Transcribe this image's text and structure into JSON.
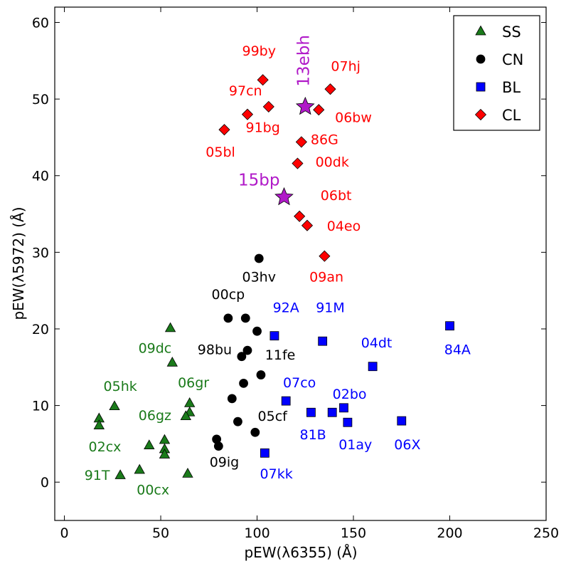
{
  "chart_data": {
    "type": "scatter",
    "title": "",
    "xlabel": "pEW(λ6355) (Å)",
    "ylabel": "pEW(λ5972) (Å)",
    "xlim": [
      -5,
      250
    ],
    "ylim": [
      -5,
      62
    ],
    "xticks": [
      0,
      50,
      100,
      150,
      200,
      250
    ],
    "yticks": [
      0,
      10,
      20,
      30,
      40,
      50,
      60
    ],
    "grid": false,
    "legend_position": "top-right",
    "series": [
      {
        "name": "SS",
        "marker": "triangle",
        "color": "#1a7a1a",
        "points": [
          [
            55,
            20.1
          ],
          [
            56,
            15.6
          ],
          [
            65,
            10.3
          ],
          [
            65,
            9.1
          ],
          [
            63,
            8.6
          ],
          [
            26,
            9.9
          ],
          [
            18,
            8.3
          ],
          [
            18,
            7.4
          ],
          [
            52,
            5.5
          ],
          [
            44,
            4.8
          ],
          [
            52,
            4.3
          ],
          [
            52,
            3.6
          ],
          [
            39,
            1.6
          ],
          [
            29,
            0.9
          ],
          [
            64,
            1.1
          ]
        ]
      },
      {
        "name": "CN",
        "marker": "circle",
        "color": "#000000",
        "points": [
          [
            101,
            29.2
          ],
          [
            85,
            21.4
          ],
          [
            94,
            21.4
          ],
          [
            100,
            19.7
          ],
          [
            95,
            17.2
          ],
          [
            92,
            16.4
          ],
          [
            102,
            14.0
          ],
          [
            93,
            12.9
          ],
          [
            87,
            10.9
          ],
          [
            90,
            7.9
          ],
          [
            99,
            6.5
          ],
          [
            79,
            5.6
          ],
          [
            80,
            4.7
          ]
        ]
      },
      {
        "name": "BL",
        "marker": "square",
        "color": "#0000ff",
        "points": [
          [
            109,
            19.1
          ],
          [
            134,
            18.4
          ],
          [
            200,
            20.4
          ],
          [
            160,
            15.1
          ],
          [
            115,
            10.6
          ],
          [
            128,
            9.1
          ],
          [
            139,
            9.1
          ],
          [
            145,
            9.7
          ],
          [
            147,
            7.8
          ],
          [
            175,
            8.0
          ],
          [
            104,
            3.8
          ]
        ]
      },
      {
        "name": "CL",
        "marker": "diamond",
        "color": "#ff0000",
        "points": [
          [
            103,
            52.5
          ],
          [
            138,
            51.3
          ],
          [
            106,
            49.0
          ],
          [
            95,
            48.0
          ],
          [
            132,
            48.6
          ],
          [
            83,
            46.0
          ],
          [
            123,
            44.4
          ],
          [
            121,
            41.6
          ],
          [
            122,
            34.7
          ],
          [
            126,
            33.5
          ],
          [
            135,
            29.5
          ]
        ]
      }
    ],
    "highlights": [
      {
        "name": "13ebh",
        "marker": "star",
        "color": "#b019c8",
        "x": 125,
        "y": 49.0
      },
      {
        "name": "15bp",
        "marker": "star",
        "color": "#b019c8",
        "x": 114,
        "y": 37.2
      }
    ],
    "annotations": [
      {
        "text": "99by",
        "x": 101,
        "y": 55.7,
        "color": "#ff0000",
        "size": 19
      },
      {
        "text": "07hj",
        "x": 146,
        "y": 53.7,
        "color": "#ff0000",
        "size": 19
      },
      {
        "text": "97cn",
        "x": 94,
        "y": 50.5,
        "color": "#ff0000",
        "size": 19
      },
      {
        "text": "06bw",
        "x": 150,
        "y": 47.0,
        "color": "#ff0000",
        "size": 19
      },
      {
        "text": "91bg",
        "x": 103,
        "y": 45.7,
        "color": "#ff0000",
        "size": 19
      },
      {
        "text": "86G",
        "x": 135,
        "y": 44.1,
        "color": "#ff0000",
        "size": 19
      },
      {
        "text": "05bl",
        "x": 81,
        "y": 42.5,
        "color": "#ff0000",
        "size": 19
      },
      {
        "text": "00dk",
        "x": 139,
        "y": 41.2,
        "color": "#ff0000",
        "size": 19
      },
      {
        "text": "06bt",
        "x": 141,
        "y": 36.8,
        "color": "#ff0000",
        "size": 19
      },
      {
        "text": "04eo",
        "x": 145,
        "y": 32.8,
        "color": "#ff0000",
        "size": 19
      },
      {
        "text": "09an",
        "x": 136,
        "y": 26.2,
        "color": "#ff0000",
        "size": 19
      },
      {
        "text": "03hv",
        "x": 101,
        "y": 26.2,
        "color": "#000000",
        "size": 19
      },
      {
        "text": "00cp",
        "x": 85,
        "y": 23.9,
        "color": "#000000",
        "size": 19
      },
      {
        "text": "98bu",
        "x": 78,
        "y": 16.7,
        "color": "#000000",
        "size": 19
      },
      {
        "text": "11fe",
        "x": 112,
        "y": 16.0,
        "color": "#000000",
        "size": 19
      },
      {
        "text": "05cf",
        "x": 108,
        "y": 8.0,
        "color": "#000000",
        "size": 19
      },
      {
        "text": "09ig",
        "x": 83,
        "y": 2.0,
        "color": "#000000",
        "size": 19
      },
      {
        "text": "92A",
        "x": 115,
        "y": 22.2,
        "color": "#0000ff",
        "size": 19
      },
      {
        "text": "91M",
        "x": 138,
        "y": 22.2,
        "color": "#0000ff",
        "size": 19
      },
      {
        "text": "84A",
        "x": 204,
        "y": 16.7,
        "color": "#0000ff",
        "size": 19
      },
      {
        "text": "04dt",
        "x": 162,
        "y": 17.6,
        "color": "#0000ff",
        "size": 19
      },
      {
        "text": "07co",
        "x": 122,
        "y": 12.4,
        "color": "#0000ff",
        "size": 19
      },
      {
        "text": "02bo",
        "x": 148,
        "y": 10.9,
        "color": "#0000ff",
        "size": 19
      },
      {
        "text": "81B",
        "x": 129,
        "y": 5.6,
        "color": "#0000ff",
        "size": 19
      },
      {
        "text": "01ay",
        "x": 151,
        "y": 4.3,
        "color": "#0000ff",
        "size": 19
      },
      {
        "text": "06X",
        "x": 178,
        "y": 4.3,
        "color": "#0000ff",
        "size": 19
      },
      {
        "text": "07kk",
        "x": 110,
        "y": 0.5,
        "color": "#0000ff",
        "size": 19
      },
      {
        "text": "09dc",
        "x": 47,
        "y": 16.9,
        "color": "#1a7a1a",
        "size": 19
      },
      {
        "text": "05hk",
        "x": 29,
        "y": 11.9,
        "color": "#1a7a1a",
        "size": 19
      },
      {
        "text": "06gr",
        "x": 67,
        "y": 12.4,
        "color": "#1a7a1a",
        "size": 19
      },
      {
        "text": "06gz",
        "x": 47,
        "y": 8.1,
        "color": "#1a7a1a",
        "size": 19
      },
      {
        "text": "02cx",
        "x": 21,
        "y": 4.0,
        "color": "#1a7a1a",
        "size": 19
      },
      {
        "text": "91T",
        "x": 17,
        "y": 0.3,
        "color": "#1a7a1a",
        "size": 19
      },
      {
        "text": "00cx",
        "x": 46,
        "y": -1.6,
        "color": "#1a7a1a",
        "size": 19
      },
      {
        "text": "15bp",
        "x": 101,
        "y": 38.7,
        "color": "#b019c8",
        "size": 23
      },
      {
        "text": "13ebh",
        "x": 127,
        "y": 55.0,
        "color": "#b019c8",
        "size": 23,
        "rotate": -90
      }
    ]
  }
}
